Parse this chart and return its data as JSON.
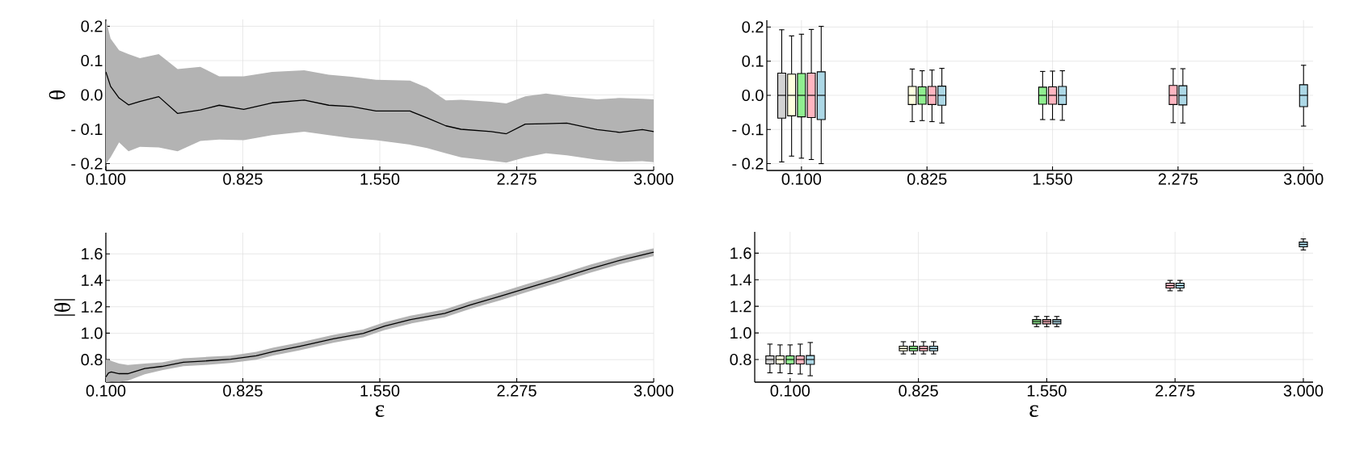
{
  "chart_data": [
    {
      "type": "line",
      "ylabel": "θ",
      "grid": true,
      "xlim": [
        0.1,
        3.0
      ],
      "ylim": [
        -0.22,
        0.22
      ],
      "xticks": [
        {
          "value": 0.1,
          "label": "0.100"
        },
        {
          "value": 0.825,
          "label": "0.825"
        },
        {
          "value": 1.55,
          "label": "1.550"
        },
        {
          "value": 2.275,
          "label": "2.275"
        },
        {
          "value": 3.0,
          "label": "3.000"
        }
      ],
      "yticks": [
        {
          "value": -0.2,
          "label": "- 0.2"
        },
        {
          "value": -0.1,
          "label": "- 0.1"
        },
        {
          "value": 0.0,
          "label": "0.0"
        },
        {
          "value": 0.1,
          "label": "0.1"
        },
        {
          "value": 0.2,
          "label": "0.2"
        }
      ],
      "series": [
        {
          "color": "#000000",
          "x": [
            0.1,
            0.125,
            0.17,
            0.22,
            0.28,
            0.38,
            0.48,
            0.6,
            0.7,
            0.83,
            0.98,
            1.15,
            1.28,
            1.4,
            1.53,
            1.71,
            1.8,
            1.9,
            1.98,
            2.14,
            2.22,
            2.32,
            2.43,
            2.54,
            2.7,
            2.82,
            2.94,
            3.0
          ],
          "values": [
            0.067,
            0.025,
            -0.009,
            -0.029,
            -0.019,
            -0.005,
            -0.054,
            -0.044,
            -0.03,
            -0.042,
            -0.023,
            -0.015,
            -0.03,
            -0.034,
            -0.047,
            -0.047,
            -0.067,
            -0.09,
            -0.1,
            -0.107,
            -0.113,
            -0.085,
            -0.084,
            -0.082,
            -0.101,
            -0.109,
            -0.101,
            -0.107
          ],
          "lower": [
            -0.2,
            -0.182,
            -0.138,
            -0.164,
            -0.151,
            -0.153,
            -0.164,
            -0.134,
            -0.13,
            -0.132,
            -0.117,
            -0.107,
            -0.117,
            -0.126,
            -0.132,
            -0.145,
            -0.155,
            -0.17,
            -0.182,
            -0.192,
            -0.197,
            -0.182,
            -0.17,
            -0.176,
            -0.189,
            -0.195,
            -0.193,
            -0.196
          ],
          "upper": [
            0.22,
            0.164,
            0.13,
            0.119,
            0.107,
            0.119,
            0.075,
            0.082,
            0.054,
            0.054,
            0.067,
            0.072,
            0.059,
            0.053,
            0.044,
            0.042,
            0.021,
            -0.016,
            -0.014,
            -0.02,
            -0.025,
            -0.004,
            0.004,
            -0.004,
            -0.013,
            -0.009,
            -0.011,
            -0.013
          ]
        }
      ]
    },
    {
      "type": "box",
      "grid": true,
      "xlim": [
        -0.1,
        3.055
      ],
      "ylim": [
        -0.22,
        0.22
      ],
      "xticks": [
        {
          "value": 0.1,
          "label": "0.100"
        },
        {
          "value": 0.825,
          "label": "0.825"
        },
        {
          "value": 1.55,
          "label": "1.550"
        },
        {
          "value": 2.275,
          "label": "2.275"
        },
        {
          "value": 3.0,
          "label": "3.000"
        }
      ],
      "yticks": [
        {
          "value": -0.2,
          "label": "- 0.2"
        },
        {
          "value": -0.1,
          "label": "- 0.1"
        },
        {
          "value": 0.0,
          "label": "0.0"
        },
        {
          "value": 0.1,
          "label": "0.1"
        },
        {
          "value": 0.2,
          "label": "0.2"
        }
      ],
      "series": [
        {
          "color": "#d3d3d3",
          "x": [
            -0.014
          ],
          "boxes": [
            {
              "low": -0.195,
              "q1": -0.067,
              "median": 0.0,
              "q3": 0.065,
              "high": 0.192
            }
          ]
        },
        {
          "color": "#ffffe0",
          "x": [
            0.043,
            0.74
          ],
          "boxes": [
            {
              "low": -0.178,
              "q1": -0.06,
              "median": 0.0,
              "q3": 0.062,
              "high": 0.174
            },
            {
              "low": -0.077,
              "q1": -0.027,
              "median": 0.0,
              "q3": 0.026,
              "high": 0.077
            }
          ]
        },
        {
          "color": "#90ee90",
          "x": [
            0.1,
            0.797,
            1.493
          ],
          "boxes": [
            {
              "low": -0.184,
              "q1": -0.063,
              "median": 0.0,
              "q3": 0.064,
              "high": 0.179
            },
            {
              "low": -0.074,
              "q1": -0.026,
              "median": 0.0,
              "q3": 0.025,
              "high": 0.072
            },
            {
              "low": -0.071,
              "q1": -0.026,
              "median": 0.0,
              "q3": 0.024,
              "high": 0.07
            }
          ]
        },
        {
          "color": "#ffb6c1",
          "x": [
            0.157,
            0.854,
            1.55,
            2.247
          ],
          "boxes": [
            {
              "low": -0.188,
              "q1": -0.065,
              "median": 0.0,
              "q3": 0.065,
              "high": 0.193
            },
            {
              "low": -0.077,
              "q1": -0.027,
              "median": 0.0,
              "q3": 0.026,
              "high": 0.074
            },
            {
              "low": -0.071,
              "q1": -0.026,
              "median": 0.0,
              "q3": 0.025,
              "high": 0.071
            },
            {
              "low": -0.08,
              "q1": -0.027,
              "median": 0.0,
              "q3": 0.029,
              "high": 0.078
            }
          ]
        },
        {
          "color": "#add8e6",
          "x": [
            0.214,
            0.911,
            1.607,
            2.303,
            3.0
          ],
          "boxes": [
            {
              "low": -0.2,
              "q1": -0.071,
              "median": 0.0,
              "q3": 0.069,
              "high": 0.202
            },
            {
              "low": -0.081,
              "q1": -0.029,
              "median": 0.0,
              "q3": 0.027,
              "high": 0.079
            },
            {
              "low": -0.073,
              "q1": -0.027,
              "median": 0.0,
              "q3": 0.026,
              "high": 0.072
            },
            {
              "low": -0.081,
              "q1": -0.028,
              "median": 0.0,
              "q3": 0.028,
              "high": 0.078
            },
            {
              "low": -0.09,
              "q1": -0.033,
              "median": 0.0,
              "q3": 0.031,
              "high": 0.088
            }
          ]
        }
      ]
    },
    {
      "type": "line",
      "xlabel": "ε",
      "ylabel": "|θ|",
      "grid": true,
      "xlim": [
        0.1,
        3.0
      ],
      "ylim": [
        0.63,
        1.76
      ],
      "xticks": [
        {
          "value": 0.1,
          "label": "0.100"
        },
        {
          "value": 0.825,
          "label": "0.825"
        },
        {
          "value": 1.55,
          "label": "1.550"
        },
        {
          "value": 2.275,
          "label": "2.275"
        },
        {
          "value": 3.0,
          "label": "3.000"
        }
      ],
      "yticks": [
        {
          "value": 0.8,
          "label": "0.8"
        },
        {
          "value": 1.0,
          "label": "1.0"
        },
        {
          "value": 1.2,
          "label": "1.2"
        },
        {
          "value": 1.4,
          "label": "1.4"
        },
        {
          "value": 1.6,
          "label": "1.6"
        }
      ],
      "series": [
        {
          "color": "#000000",
          "x": [
            0.1,
            0.114,
            0.129,
            0.17,
            0.216,
            0.306,
            0.397,
            0.51,
            0.624,
            0.76,
            0.896,
            0.987,
            1.123,
            1.304,
            1.463,
            1.576,
            1.712,
            1.894,
            2.03,
            2.188,
            2.347,
            2.483,
            2.665,
            2.823,
            3.0
          ],
          "values": [
            0.668,
            0.7,
            0.707,
            0.694,
            0.694,
            0.733,
            0.749,
            0.781,
            0.79,
            0.803,
            0.829,
            0.861,
            0.9,
            0.957,
            0.999,
            1.054,
            1.102,
            1.15,
            1.214,
            1.279,
            1.349,
            1.407,
            1.488,
            1.552,
            1.613
          ],
          "lower": [
            0.63,
            0.632,
            0.635,
            0.633,
            0.64,
            0.69,
            0.72,
            0.75,
            0.76,
            0.775,
            0.799,
            0.831,
            0.87,
            0.927,
            0.969,
            1.024,
            1.072,
            1.12,
            1.184,
            1.249,
            1.319,
            1.377,
            1.458,
            1.522,
            1.583
          ],
          "upper": [
            0.8,
            0.8,
            0.79,
            0.77,
            0.76,
            0.77,
            0.78,
            0.81,
            0.82,
            0.83,
            0.859,
            0.891,
            0.93,
            0.987,
            1.029,
            1.084,
            1.132,
            1.18,
            1.244,
            1.309,
            1.379,
            1.437,
            1.518,
            1.582,
            1.643
          ]
        }
      ]
    },
    {
      "type": "box",
      "xlabel": "ε",
      "grid": true,
      "xlim": [
        -0.1,
        3.055
      ],
      "ylim": [
        0.63,
        1.76
      ],
      "xticks": [
        {
          "value": 0.1,
          "label": "0.100"
        },
        {
          "value": 0.825,
          "label": "0.825"
        },
        {
          "value": 1.55,
          "label": "1.550"
        },
        {
          "value": 2.275,
          "label": "2.275"
        },
        {
          "value": 3.0,
          "label": "3.000"
        }
      ],
      "yticks": [
        {
          "value": 0.8,
          "label": "0.8"
        },
        {
          "value": 1.0,
          "label": "1.0"
        },
        {
          "value": 1.2,
          "label": "1.2"
        },
        {
          "value": 1.4,
          "label": "1.4"
        },
        {
          "value": 1.6,
          "label": "1.6"
        }
      ],
      "series": [
        {
          "color": "#d3d3d3",
          "x": [
            -0.014
          ],
          "boxes": [
            {
              "low": 0.7,
              "q1": 0.767,
              "median": 0.8,
              "q3": 0.827,
              "high": 0.916
            }
          ]
        },
        {
          "color": "#ffffe0",
          "x": [
            0.043,
            0.74
          ],
          "boxes": [
            {
              "low": 0.7,
              "q1": 0.767,
              "median": 0.8,
              "q3": 0.827,
              "high": 0.91
            },
            {
              "low": 0.842,
              "q1": 0.865,
              "median": 0.883,
              "q3": 0.9,
              "high": 0.934
            }
          ]
        },
        {
          "color": "#90ee90",
          "x": [
            0.1,
            0.797,
            1.493
          ],
          "boxes": [
            {
              "low": 0.694,
              "q1": 0.767,
              "median": 0.8,
              "q3": 0.827,
              "high": 0.91
            },
            {
              "low": 0.842,
              "q1": 0.865,
              "median": 0.883,
              "q3": 0.9,
              "high": 0.934
            },
            {
              "low": 1.047,
              "q1": 1.068,
              "median": 1.085,
              "q3": 1.1,
              "high": 1.124
            }
          ]
        },
        {
          "color": "#ffb6c1",
          "x": [
            0.157,
            0.854,
            1.55,
            2.247
          ],
          "boxes": [
            {
              "low": 0.691,
              "q1": 0.767,
              "median": 0.8,
              "q3": 0.827,
              "high": 0.916
            },
            {
              "low": 0.842,
              "q1": 0.865,
              "median": 0.883,
              "q3": 0.9,
              "high": 0.934
            },
            {
              "low": 1.047,
              "q1": 1.068,
              "median": 1.085,
              "q3": 1.1,
              "high": 1.124
            },
            {
              "low": 1.317,
              "q1": 1.338,
              "median": 1.356,
              "q3": 1.374,
              "high": 1.395
            }
          ]
        },
        {
          "color": "#add8e6",
          "x": [
            0.214,
            0.911,
            1.607,
            2.303,
            3.0
          ],
          "boxes": [
            {
              "low": 0.678,
              "q1": 0.764,
              "median": 0.8,
              "q3": 0.83,
              "high": 0.928
            },
            {
              "low": 0.842,
              "q1": 0.865,
              "median": 0.883,
              "q3": 0.9,
              "high": 0.934
            },
            {
              "low": 1.047,
              "q1": 1.068,
              "median": 1.085,
              "q3": 1.1,
              "high": 1.124
            },
            {
              "low": 1.317,
              "q1": 1.338,
              "median": 1.356,
              "q3": 1.374,
              "high": 1.395
            },
            {
              "low": 1.624,
              "q1": 1.648,
              "median": 1.665,
              "q3": 1.683,
              "high": 1.707
            }
          ]
        }
      ]
    }
  ]
}
